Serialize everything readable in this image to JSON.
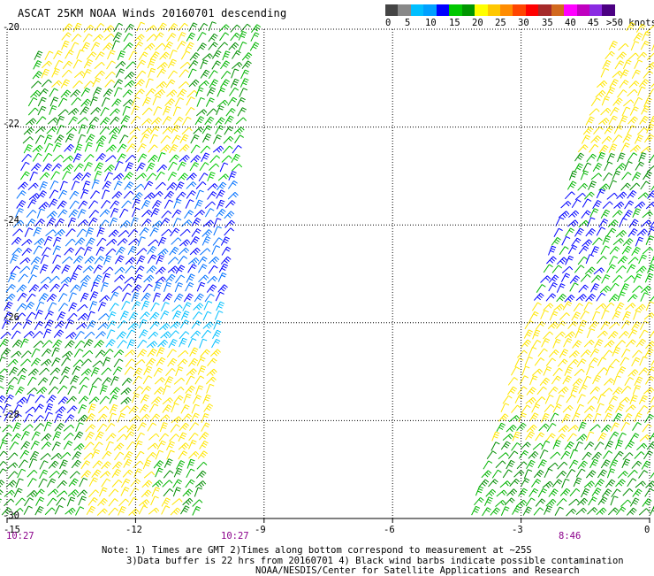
{
  "header": {
    "title": "ASCAT 25KM NOAA Winds 20160701 descending"
  },
  "legend": {
    "colors": [
      "#444444",
      "#888888",
      "#00bfff",
      "#00a0ff",
      "#0000ff",
      "#00c800",
      "#009600",
      "#ffff00",
      "#ffc800",
      "#ff8c00",
      "#ff4500",
      "#ff0000",
      "#a52a2a",
      "#d2691e",
      "#ff00ff",
      "#c000c0",
      "#8a2be2",
      "#4b0082"
    ],
    "labels": [
      "0",
      "5",
      "10",
      "15",
      "20",
      "25",
      "30",
      "35",
      "40",
      "45",
      ">50 knots"
    ]
  },
  "chart_data": {
    "type": "map",
    "x_ticks": [
      "-15",
      "-12",
      "-9",
      "-6",
      "-3",
      "0"
    ],
    "y_ticks": [
      "-20",
      "-22",
      "-24",
      "-26",
      "-28",
      "-30"
    ],
    "xlim": [
      -15,
      0
    ],
    "ylim": [
      -30,
      -20
    ],
    "grid": true,
    "swath_times": [
      "10:27",
      "10:27",
      "8:46"
    ],
    "swaths": [
      {
        "name": "west",
        "lon_range": [
          -15,
          -9.2
        ],
        "lat_range": [
          -30,
          -20
        ]
      },
      {
        "name": "east",
        "lon_range": [
          -4.2,
          0
        ],
        "lat_range": [
          -30,
          -20
        ]
      }
    ]
  },
  "notes": {
    "line1": "Note: 1) Times are GMT 2)Times along bottom correspond to measurement at ~25S",
    "line2": "3)Data buffer is 22 hrs from 20160701 4) Black wind barbs indicate possible contamination",
    "line3": "NOAA/NESDIS/Center for Satellite Applications and Research"
  }
}
